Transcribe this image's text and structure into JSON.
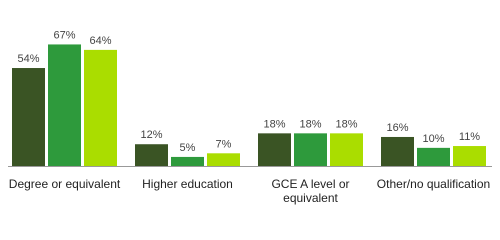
{
  "chart_data": {
    "type": "bar",
    "categories": [
      "Degree or equivalent",
      "Higher education",
      "GCE A level or equivalent",
      "Other/no qualification"
    ],
    "series": [
      {
        "color": "#3a5424",
        "values": [
          54,
          12,
          18,
          16
        ],
        "value_labels": [
          "54%",
          "12%",
          "18%",
          "16%"
        ]
      },
      {
        "color": "#2e9a3c",
        "values": [
          67,
          5,
          18,
          10
        ],
        "value_labels": [
          "67%",
          "5%",
          "18%",
          "10%"
        ]
      },
      {
        "color": "#aadd00",
        "values": [
          64,
          7,
          18,
          11
        ],
        "value_labels": [
          "64%",
          "7%",
          "18%",
          "11%"
        ]
      }
    ],
    "ylim": [
      0,
      70
    ]
  }
}
